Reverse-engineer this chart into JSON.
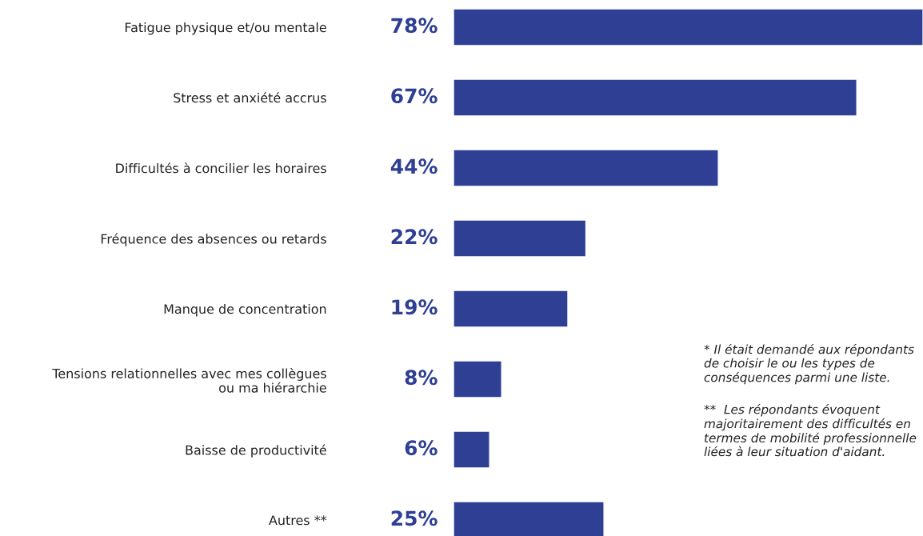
{
  "chart_data": {
    "type": "bar",
    "orientation": "horizontal",
    "categories": [
      "Fatigue physique et/ou mentale",
      "Stress et anxiété accrus",
      "Difficultés à concilier les horaires",
      "Fréquence des absences ou retards",
      "Manque de concentration",
      "Tensions relationnelles avec mes collègues\nou ma hiérarchie",
      "Baisse de productivité",
      "Autres **"
    ],
    "values": [
      78,
      67,
      44,
      22,
      19,
      8,
      6,
      25
    ],
    "color": "#2e3f94",
    "value_labels": [
      "78%",
      "67%",
      "44%",
      "22%",
      "19%",
      "8%",
      "6%",
      "25%"
    ],
    "grid": false,
    "legend": false,
    "annotations": [
      "* Il était demandé aux répondants de choisir le ou les types de conséquences parmi une liste.",
      "**  Les répondants évoquent majoritairement des difficultés en termes de mobilité professionnelle liées à leur situation d'aidant."
    ]
  }
}
